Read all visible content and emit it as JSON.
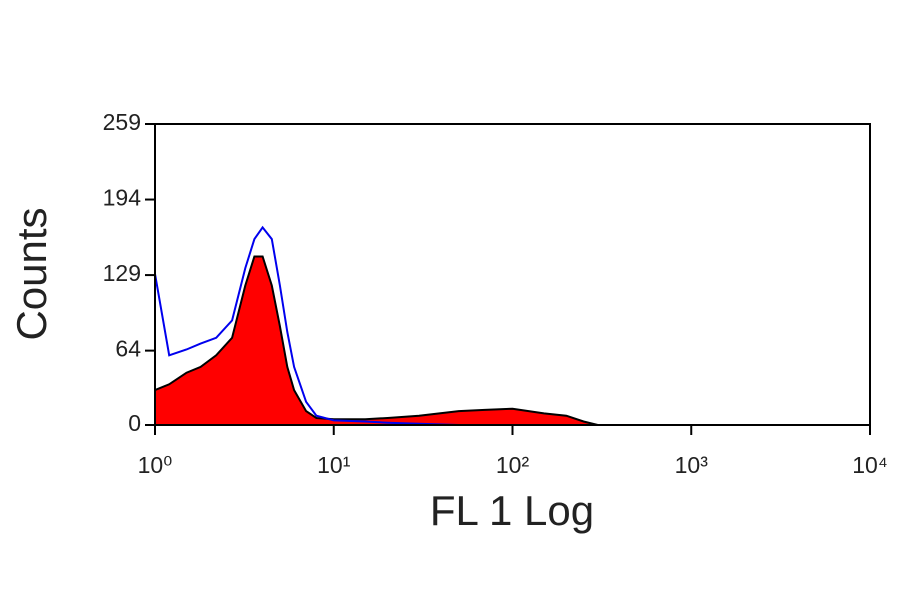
{
  "chart_data": {
    "type": "area",
    "x_scale": "log",
    "x_label": "FL 1 Log",
    "y_label": "Counts",
    "x": [
      1,
      1.2,
      1.5,
      1.8,
      2.2,
      2.7,
      3.2,
      3.6,
      4,
      4.5,
      5,
      5.5,
      6,
      7,
      8,
      10,
      15,
      20,
      30,
      50,
      70,
      100,
      150,
      200,
      250,
      300,
      400
    ],
    "series": [
      {
        "color": "#ff0000",
        "edge_color": "#000000",
        "fill": true,
        "values": [
          30,
          35,
          45,
          50,
          60,
          75,
          120,
          145,
          145,
          120,
          85,
          50,
          30,
          12,
          6,
          5,
          5,
          6,
          8,
          12,
          13,
          14,
          10,
          8,
          3,
          0,
          0
        ]
      },
      {
        "color": "#0000ee",
        "fill": false,
        "values": [
          130,
          60,
          65,
          70,
          75,
          90,
          135,
          160,
          170,
          160,
          120,
          80,
          50,
          20,
          8,
          4,
          3,
          2,
          1,
          0,
          0,
          0,
          0,
          0,
          0,
          0,
          0
        ]
      }
    ],
    "xlim": [
      1,
      10000
    ],
    "xticks": [
      {
        "value": 1,
        "label": "10⁰"
      },
      {
        "value": 10,
        "label": "10¹"
      },
      {
        "value": 100,
        "label": "10²"
      },
      {
        "value": 1000,
        "label": "10³"
      },
      {
        "value": 10000,
        "label": "10⁴"
      }
    ],
    "ylim": [
      0,
      259
    ],
    "yticks": [
      0,
      64,
      129,
      194,
      259
    ]
  }
}
